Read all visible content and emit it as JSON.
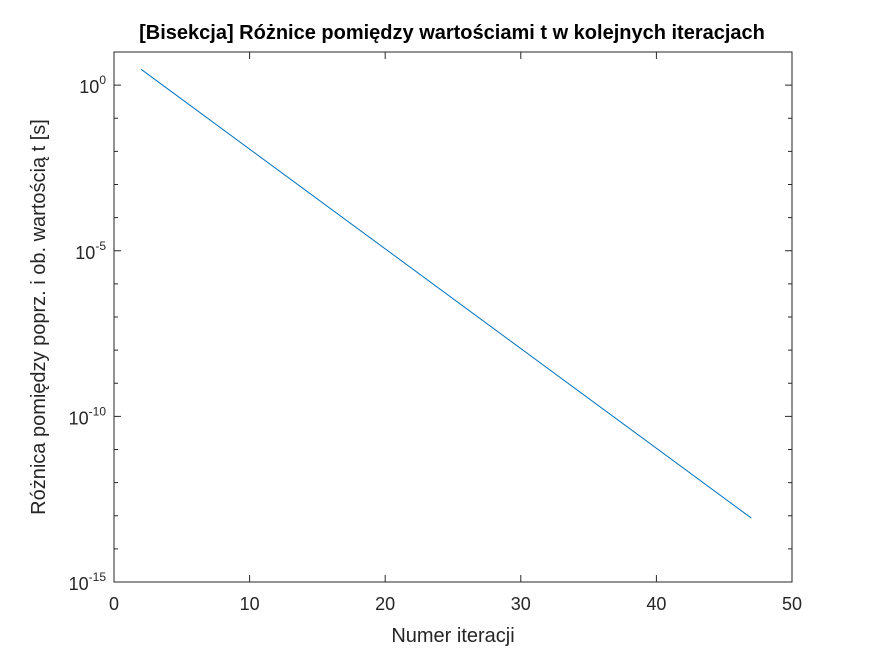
{
  "chart_data": {
    "type": "line",
    "title": "[Bisekcja] Różnice pomiędzy wartościami t w kolejnych iteracjach",
    "xlabel": "Numer iteracji",
    "ylabel": "Różnica pomiędzy poprz. i ob. wartością t [s]",
    "xlim": [
      0,
      50
    ],
    "ylim": [
      1e-15,
      10
    ],
    "yscale": "log",
    "xticks": [
      0,
      10,
      20,
      30,
      40,
      50
    ],
    "xtick_labels": [
      "0",
      "10",
      "20",
      "30",
      "40",
      "50"
    ],
    "yticks": [
      1e-15,
      1e-10,
      1e-05,
      1
    ],
    "ytick_labels": [
      {
        "base": "10",
        "exp": "-15"
      },
      {
        "base": "10",
        "exp": "-10"
      },
      {
        "base": "10",
        "exp": "-5"
      },
      {
        "base": "10",
        "exp": "0"
      }
    ],
    "grid": false,
    "series": [
      {
        "color": "#0072BD",
        "x": [
          2,
          47
        ],
        "y": [
          3.0,
          8.5e-14
        ]
      }
    ]
  }
}
